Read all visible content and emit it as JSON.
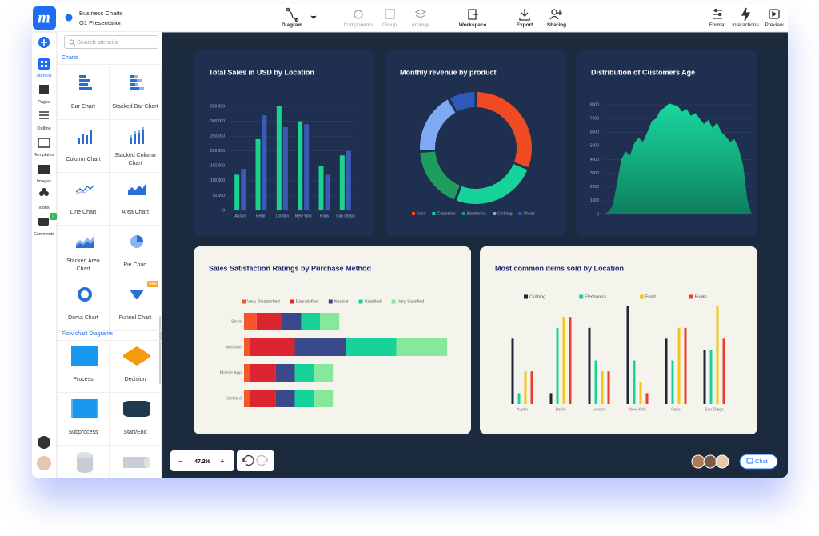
{
  "app": {
    "logo": "m",
    "doc_title": "Business Charts",
    "doc_subtitle": "Q1 Presentation"
  },
  "toolbar": {
    "center": [
      "Diagram",
      "Components",
      "Group",
      "Arrange",
      "Workspace",
      "Export",
      "Sharing"
    ],
    "right": [
      "Format",
      "Interactions",
      "Preview"
    ]
  },
  "sidebar": {
    "tabs": [
      "Stencils",
      "Pages",
      "Outline",
      "Templates",
      "Images",
      "Icons",
      "Comments"
    ],
    "comments_badge": 3
  },
  "stencils": {
    "search_placeholder": "Search stencils",
    "new_badge": "New",
    "sections": [
      {
        "title": "Charts",
        "items": [
          "Bar Chart",
          "Stacked Bar Chart",
          "Column Chart",
          "Stacked Column Chart",
          "Line Chart",
          "Area Chart",
          "Stacked Area Chart",
          "Pie Chart",
          "Donut Chart",
          "Funnel Chart"
        ]
      },
      {
        "title": "Flow chart Diagrams",
        "items": [
          "Process",
          "Decision",
          "Subprocess",
          "Start/End"
        ]
      }
    ]
  },
  "zoom": {
    "minus": "−",
    "level": "47.2%",
    "plus": "+"
  },
  "chat": "Chat",
  "chart_data": [
    {
      "type": "bar",
      "title": "Total Sales in USD by Location",
      "categories": [
        "Austin",
        "Berlin",
        "London",
        "New York",
        "Paris",
        "San Diego"
      ],
      "series": [
        {
          "color": "#19d38f",
          "values": [
            120000,
            240000,
            350000,
            300000,
            150000,
            185000
          ]
        },
        {
          "color": "#3a5bb5",
          "values": [
            140000,
            320000,
            280000,
            290000,
            120000,
            200000
          ]
        }
      ],
      "ylim": [
        0,
        350000
      ],
      "yticks": [
        0,
        {
          "value": 50000,
          "label": "50 000"
        },
        {
          "value": 100000,
          "label": "100 000"
        },
        {
          "value": 150000,
          "label": "150 000"
        },
        {
          "value": 200000,
          "label": "200 000"
        },
        {
          "value": 250000,
          "label": "250 000"
        },
        {
          "value": 300000,
          "label": "300 000"
        },
        {
          "value": 350000,
          "label": "350 000"
        }
      ],
      "grid": true
    },
    {
      "type": "donut",
      "title": "Monthly revenue by product",
      "categories": [
        "Food",
        "Cosmetics",
        "Electronics",
        "Clothing",
        "Shoes"
      ],
      "values": [
        31,
        25,
        18,
        18,
        8
      ],
      "colors": [
        "#f04a23",
        "#17d39a",
        "#1f9d5f",
        "#7fa8f5",
        "#2c5cb8"
      ]
    },
    {
      "type": "area",
      "title": "Distribution of Customers Age",
      "color": "#14c98e",
      "values": [
        0,
        200,
        600,
        2200,
        4000,
        4600,
        4300,
        5200,
        5600,
        5300,
        6000,
        6800,
        7000,
        7600,
        7800,
        8100,
        8000,
        7900,
        7500,
        7700,
        7200,
        7400,
        7000,
        6600,
        6900,
        6300,
        6700,
        6000,
        5700,
        5300,
        5500,
        4800,
        3600,
        1000,
        0
      ],
      "ylim": [
        0,
        8000
      ],
      "yticks": [
        0,
        1000,
        2000,
        3000,
        4000,
        5000,
        6000,
        7000,
        8000
      ],
      "grid": true
    },
    {
      "type": "stacked-hbar",
      "title": "Sales Satisfaction Ratings by Purchase Method",
      "categories": [
        "Store",
        "Website",
        "Mobile App",
        "Untitled"
      ],
      "xlim": [
        0,
        34
      ],
      "series": [
        {
          "name": "Very Dissatisfied",
          "color": "#f4582a",
          "values": [
            2,
            1,
            1,
            1
          ]
        },
        {
          "name": "Dissatisfied",
          "color": "#dc2330",
          "values": [
            4,
            7,
            4,
            4
          ]
        },
        {
          "name": "Neutral",
          "color": "#39498a",
          "values": [
            3,
            8,
            3,
            3
          ]
        },
        {
          "name": "Satisfied",
          "color": "#17d39a",
          "values": [
            3,
            8,
            3,
            3
          ]
        },
        {
          "name": "Very Satisfied",
          "color": "#86e89a",
          "values": [
            3,
            8,
            3,
            3
          ]
        }
      ]
    },
    {
      "type": "bar",
      "title": "Most common items sold by Location",
      "categories": [
        "Austin",
        "Berlin",
        "London",
        "New York",
        "Paris",
        "San Diego"
      ],
      "ylim": [
        0,
        10
      ],
      "series": [
        {
          "name": "Clothing",
          "color": "#1c2638",
          "values": [
            6,
            1,
            7,
            9,
            6,
            5
          ]
        },
        {
          "name": "Electronics",
          "color": "#17d39a",
          "values": [
            1,
            7,
            4,
            4,
            4,
            5
          ]
        },
        {
          "name": "Food",
          "color": "#f5c518",
          "values": [
            3,
            8,
            3,
            2,
            7,
            9
          ]
        },
        {
          "name": "Books",
          "color": "#ef3b2c",
          "values": [
            3,
            8,
            3,
            1,
            7,
            6
          ]
        }
      ]
    }
  ]
}
